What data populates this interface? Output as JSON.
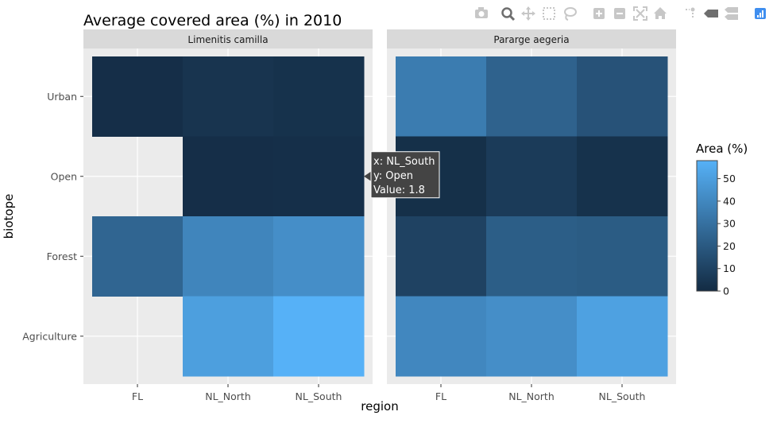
{
  "chart_data": {
    "type": "heatmap",
    "title": "Average covered area (%) in 2010",
    "xlabel": "region",
    "ylabel": "biotope",
    "x_categories": [
      "FL",
      "NL_North",
      "NL_South"
    ],
    "y_categories": [
      "Urban",
      "Open",
      "Forest",
      "Agriculture"
    ],
    "facets": [
      {
        "name": "Limenitis camilla",
        "cells": [
          {
            "x": "FL",
            "y": "Urban",
            "value": 1.5
          },
          {
            "x": "NL_North",
            "y": "Urban",
            "value": 4
          },
          {
            "x": "NL_South",
            "y": "Urban",
            "value": 3
          },
          {
            "x": "FL",
            "y": "Open",
            "value": null
          },
          {
            "x": "NL_North",
            "y": "Open",
            "value": 1.5
          },
          {
            "x": "NL_South",
            "y": "Open",
            "value": 1.8
          },
          {
            "x": "FL",
            "y": "Forest",
            "value": 25
          },
          {
            "x": "NL_North",
            "y": "Forest",
            "value": 39
          },
          {
            "x": "NL_South",
            "y": "Forest",
            "value": 43
          },
          {
            "x": "FL",
            "y": "Agriculture",
            "value": null
          },
          {
            "x": "NL_North",
            "y": "Agriculture",
            "value": 50
          },
          {
            "x": "NL_South",
            "y": "Agriculture",
            "value": 58
          }
        ]
      },
      {
        "name": "Pararge aegeria",
        "cells": [
          {
            "x": "FL",
            "y": "Urban",
            "value": 35
          },
          {
            "x": "NL_North",
            "y": "Urban",
            "value": 24
          },
          {
            "x": "NL_South",
            "y": "Urban",
            "value": 17
          },
          {
            "x": "FL",
            "y": "Open",
            "value": 2
          },
          {
            "x": "NL_North",
            "y": "Open",
            "value": 7
          },
          {
            "x": "NL_South",
            "y": "Open",
            "value": 3
          },
          {
            "x": "FL",
            "y": "Forest",
            "value": 10
          },
          {
            "x": "NL_North",
            "y": "Forest",
            "value": 22
          },
          {
            "x": "NL_South",
            "y": "Forest",
            "value": 21
          },
          {
            "x": "FL",
            "y": "Agriculture",
            "value": 40
          },
          {
            "x": "NL_North",
            "y": "Agriculture",
            "value": 43
          },
          {
            "x": "NL_South",
            "y": "Agriculture",
            "value": 51
          }
        ]
      }
    ],
    "colorbar": {
      "title": "Area (%)",
      "min": 0,
      "max": 58,
      "ticks": [
        0,
        10,
        20,
        30,
        40,
        50
      ],
      "low_color": "#132B43",
      "high_color": "#56B1F7"
    },
    "grid": true,
    "legend_position": "right"
  },
  "tooltip": {
    "facet": "Limenitis camilla",
    "x": "NL_South",
    "y": "Open",
    "line_x": "x: NL_South",
    "line_y": "y: Open",
    "line_value": "Value: 1.8"
  },
  "toolbar": {
    "buttons": [
      {
        "name": "camera-icon",
        "title": "Download plot as a png"
      },
      {
        "name": "zoom-icon",
        "title": "Zoom"
      },
      {
        "name": "pan-icon",
        "title": "Pan"
      },
      {
        "name": "box-select-icon",
        "title": "Box Select"
      },
      {
        "name": "lasso-select-icon",
        "title": "Lasso Select"
      },
      {
        "name": "zoom-in-icon",
        "title": "Zoom in"
      },
      {
        "name": "zoom-out-icon",
        "title": "Zoom out"
      },
      {
        "name": "autoscale-icon",
        "title": "Autoscale"
      },
      {
        "name": "home-icon",
        "title": "Reset axes"
      },
      {
        "name": "spike-lines-icon",
        "title": "Toggle Spike Lines"
      },
      {
        "name": "hover-closest-icon",
        "title": "Show closest data on hover"
      },
      {
        "name": "hover-compare-icon",
        "title": "Compare data on hover"
      },
      {
        "name": "plotly-logo-icon",
        "title": "Produced with Plotly"
      }
    ],
    "icon_color": "#c7c7c7",
    "active_color": "#6e6e6e",
    "logo_color": "#3f8eef"
  }
}
